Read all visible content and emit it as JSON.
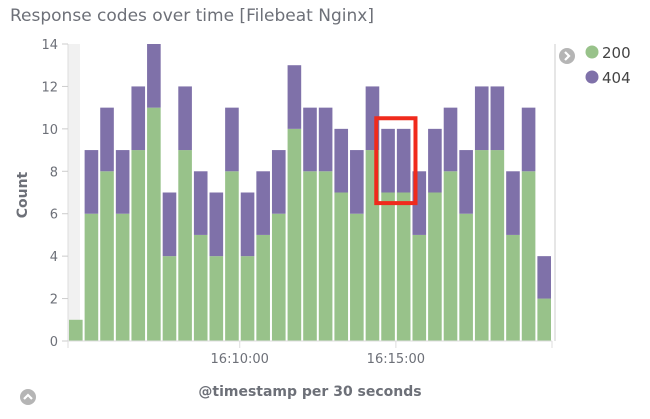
{
  "chart_data": {
    "type": "bar",
    "stacked": true,
    "title": "Response codes over time [Filebeat Nginx]",
    "xlabel": "@timestamp per 30 seconds",
    "ylabel": "Count",
    "ylim": [
      0,
      14
    ],
    "yticks": [
      "0",
      "2",
      "4",
      "6",
      "8",
      "10",
      "12",
      "14"
    ],
    "xticks": [
      "16:10:00",
      "16:15:00"
    ],
    "x": [
      "16:04:30",
      "16:05:00",
      "16:05:30",
      "16:06:00",
      "16:06:30",
      "16:07:00",
      "16:07:30",
      "16:08:00",
      "16:08:30",
      "16:09:00",
      "16:09:30",
      "16:10:00",
      "16:10:30",
      "16:11:00",
      "16:11:30",
      "16:12:00",
      "16:12:30",
      "16:13:00",
      "16:13:30",
      "16:14:00",
      "16:14:30",
      "16:15:00",
      "16:15:30",
      "16:16:00",
      "16:16:30",
      "16:17:00",
      "16:17:30",
      "16:18:00",
      "16:18:30",
      "16:19:00",
      "16:19:30"
    ],
    "series": [
      {
        "name": "200",
        "color": "#98c28a",
        "values": [
          1,
          6,
          8,
          6,
          9,
          11,
          4,
          9,
          5,
          4,
          8,
          4,
          5,
          6,
          10,
          8,
          8,
          7,
          6,
          9,
          7,
          7,
          5,
          7,
          8,
          6,
          9,
          9,
          5,
          8,
          2
        ]
      },
      {
        "name": "404",
        "color": "#7f71a9",
        "values": [
          0,
          3,
          3,
          3,
          3,
          3,
          3,
          3,
          3,
          3,
          3,
          3,
          3,
          3,
          3,
          3,
          3,
          3,
          3,
          3,
          3,
          3,
          3,
          3,
          3,
          3,
          3,
          3,
          3,
          3,
          2
        ]
      }
    ],
    "legend_position": "top-right",
    "grid": false,
    "annotation": {
      "type": "red-box",
      "around_x": [
        "16:14:30",
        "16:15:00"
      ]
    }
  },
  "icons": {
    "legend_toggle": "chevron-right-circle-icon",
    "collapse": "chevron-up-circle-icon"
  }
}
